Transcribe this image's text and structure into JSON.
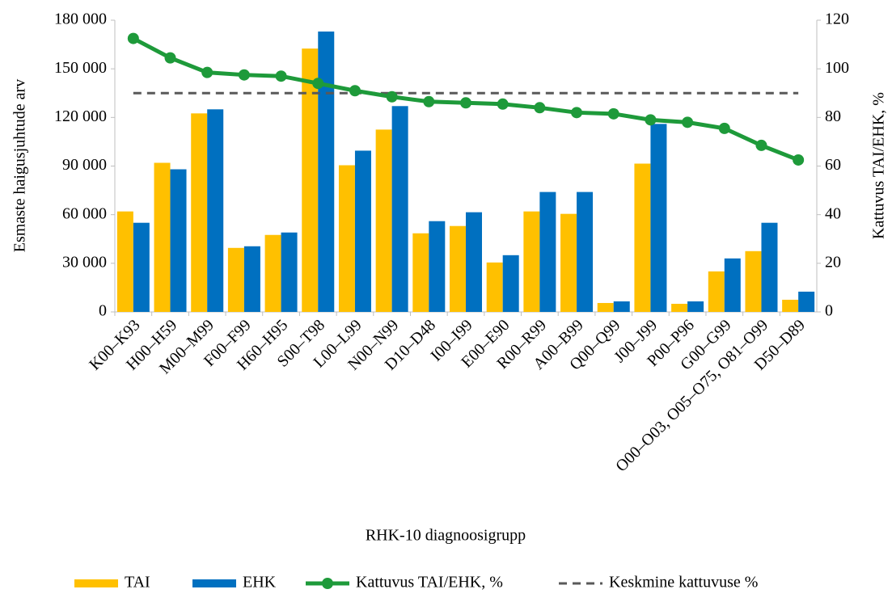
{
  "chart_data": {
    "type": "bar_line",
    "x_label": "RHK-10 diagnoosigrupp",
    "y_label": "Esmaste haigusjuhtude arv",
    "y2_label": "Kattuvus TAI/EHK, %",
    "categories": [
      "K00–K93",
      "H00–H59",
      "M00–M99",
      "F00–F99",
      "H60–H95",
      "S00–T98",
      "L00–L99",
      "N00–N99",
      "D10–D48",
      "I00–I99",
      "E00–E90",
      "R00–R99",
      "A00–B99",
      "Q00–Q99",
      "J00–J99",
      "P00–P96",
      "G00–G99",
      "O00–O03, O05–O75, O81–O99",
      "D50–D89"
    ],
    "series": [
      {
        "name": "TAI",
        "type": "bar",
        "color": "#FFC000",
        "values": [
          62000,
          92000,
          122500,
          39500,
          47500,
          162500,
          90500,
          112500,
          48500,
          53000,
          30500,
          62000,
          60500,
          5500,
          91500,
          5000,
          25000,
          37500,
          7500
        ]
      },
      {
        "name": "EHK",
        "type": "bar",
        "color": "#0070C0",
        "values": [
          55000,
          88000,
          125000,
          40500,
          49000,
          173000,
          99500,
          127000,
          56000,
          61500,
          35000,
          74000,
          74000,
          6500,
          116000,
          6500,
          33000,
          55000,
          12500
        ]
      },
      {
        "name": "Kattuvus TAI/EHK, %",
        "type": "line",
        "axis": "y2",
        "color": "#1E9A3A",
        "values": [
          112.5,
          104.5,
          98.5,
          97.5,
          97,
          94,
          91,
          88.5,
          86.5,
          86,
          85.5,
          84,
          82,
          81.5,
          79,
          78,
          75.5,
          68.5,
          62.5
        ]
      }
    ],
    "reference_line": {
      "name": "Keskmine kattuvuse %",
      "axis": "y2",
      "value": 90,
      "color": "#595959"
    },
    "ylim": [
      0,
      180000
    ],
    "yticks": [
      0,
      {
        "value": 30000,
        "label": "30 000"
      },
      {
        "value": 60000,
        "label": "60 000"
      },
      {
        "value": 90000,
        "label": "90 000"
      },
      {
        "value": 120000,
        "label": "120 000"
      },
      {
        "value": 150000,
        "label": "150 000"
      },
      {
        "value": 180000,
        "label": "180 000"
      }
    ],
    "y2lim": [
      0,
      120
    ],
    "y2ticks": [
      0,
      20,
      40,
      60,
      80,
      100,
      120
    ]
  }
}
